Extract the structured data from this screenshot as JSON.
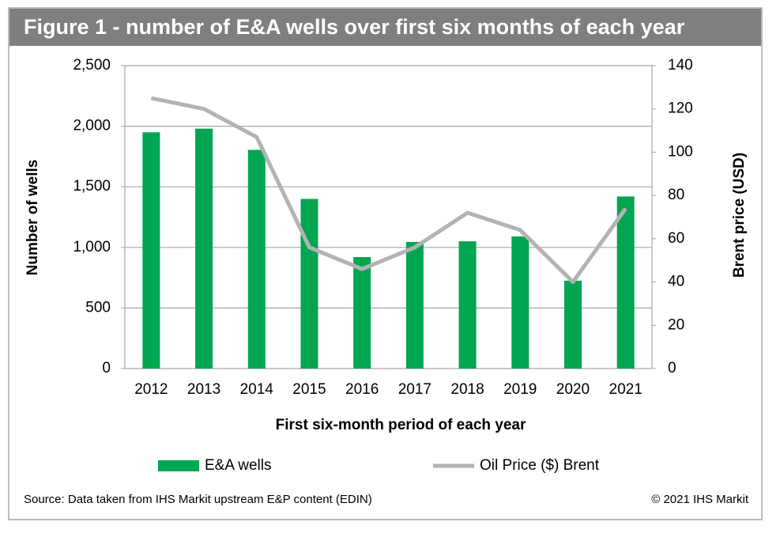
{
  "chart_data": {
    "type": "bar",
    "title": "Figure 1 - number of E&A wells over first six months of each year",
    "x_label": "First six-month period of each year",
    "y_label": "Number of wells",
    "y2_label": "Brent price (USD)",
    "categories": [
      "2012",
      "2013",
      "2014",
      "2015",
      "2016",
      "2017",
      "2018",
      "2019",
      "2020",
      "2021"
    ],
    "series": [
      {
        "name": "E&A wells",
        "type": "bar",
        "color": "#00a651",
        "values": [
          1950,
          1980,
          1805,
          1400,
          920,
          1045,
          1050,
          1090,
          725,
          1420
        ]
      },
      {
        "name": "Oil Price ($) Brent",
        "type": "line",
        "axis": "y2",
        "color": "#b3b3b3",
        "values": [
          125,
          120,
          107,
          56,
          46,
          56,
          72,
          64,
          40,
          74
        ]
      }
    ],
    "ylim": [
      0,
      2500
    ],
    "yticks": [
      0,
      500,
      {
        "value": 1000,
        "label": "1,000"
      },
      {
        "value": 1500,
        "label": "1,500"
      },
      {
        "value": 2000,
        "label": "2,000"
      },
      {
        "value": 2500,
        "label": "2,500"
      }
    ],
    "y2lim": [
      0,
      140
    ],
    "y2ticks": [
      0,
      20,
      40,
      60,
      80,
      100,
      120,
      140
    ],
    "grid": true,
    "legend": "bottom",
    "source": "Source: Data taken from IHS Markit upstream E&P content (EDIN)",
    "copyright": "© 2021 IHS Markit"
  }
}
